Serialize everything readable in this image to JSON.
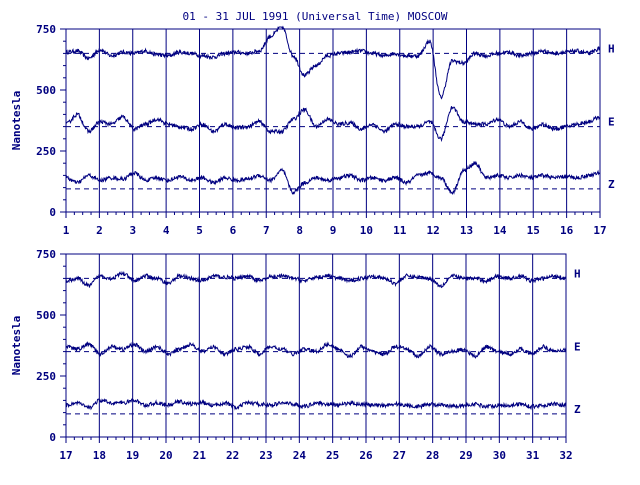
{
  "chart_data": [
    {
      "type": "line",
      "title": "01 - 31 JUL 1991 (Universal Time) MOSCOW",
      "ylabel": "Nanotesla",
      "ylim": [
        0,
        750
      ],
      "y_ticks": [
        "0",
        "250",
        "500",
        "750"
      ],
      "xlim": [
        1,
        17
      ],
      "x_ticks": [
        "1",
        "2",
        "3",
        "4",
        "5",
        "6",
        "7",
        "8",
        "9",
        "10",
        "11",
        "12",
        "13",
        "14",
        "15",
        "16",
        "17"
      ],
      "grid": true,
      "series": [
        {
          "name": "H",
          "baseline": 650,
          "values": [
            655,
            660,
            630,
            665,
            640,
            655,
            650,
            660,
            645,
            640,
            655,
            650,
            640,
            635,
            650,
            655,
            650,
            660,
            720,
            760,
            640,
            560,
            600,
            640,
            650,
            655,
            660,
            650,
            640,
            650,
            640,
            640,
            700,
            470,
            620,
            610,
            650,
            640,
            650,
            655,
            640,
            650,
            660,
            650,
            655,
            660,
            650,
            670
          ]
        },
        {
          "name": "E",
          "baseline": 350,
          "values": [
            360,
            400,
            330,
            370,
            360,
            390,
            340,
            360,
            380,
            360,
            350,
            340,
            360,
            330,
            360,
            345,
            350,
            370,
            330,
            330,
            380,
            420,
            350,
            380,
            360,
            365,
            340,
            360,
            330,
            360,
            350,
            350,
            370,
            300,
            430,
            370,
            360,
            360,
            380,
            350,
            370,
            340,
            360,
            340,
            350,
            360,
            370,
            390
          ]
        },
        {
          "name": "Z",
          "baseline": 95,
          "values": [
            140,
            120,
            150,
            130,
            140,
            135,
            160,
            130,
            140,
            130,
            145,
            130,
            140,
            120,
            140,
            130,
            135,
            150,
            130,
            170,
            80,
            120,
            140,
            130,
            140,
            150,
            130,
            140,
            130,
            140,
            120,
            150,
            160,
            140,
            80,
            170,
            200,
            140,
            150,
            140,
            150,
            140,
            150,
            140,
            145,
            140,
            150,
            160
          ]
        }
      ]
    },
    {
      "type": "line",
      "ylabel": "Nanotesla",
      "ylim": [
        0,
        750
      ],
      "y_ticks": [
        "0",
        "250",
        "500",
        "750"
      ],
      "xlim": [
        17,
        32
      ],
      "x_ticks": [
        "17",
        "18",
        "19",
        "20",
        "21",
        "22",
        "23",
        "24",
        "25",
        "26",
        "27",
        "28",
        "29",
        "30",
        "31",
        "32"
      ],
      "grid": true,
      "series": [
        {
          "name": "H",
          "baseline": 650,
          "values": [
            640,
            650,
            620,
            660,
            650,
            670,
            640,
            660,
            650,
            630,
            660,
            650,
            640,
            660,
            655,
            650,
            660,
            640,
            655,
            660,
            650,
            640,
            655,
            660,
            650,
            640,
            650,
            660,
            650,
            630,
            660,
            655,
            650,
            620,
            660,
            650,
            650,
            640,
            660,
            650,
            660,
            640,
            650,
            660,
            650
          ]
        },
        {
          "name": "E",
          "baseline": 350,
          "values": [
            370,
            360,
            380,
            340,
            370,
            360,
            380,
            350,
            370,
            340,
            360,
            380,
            350,
            370,
            340,
            360,
            370,
            340,
            370,
            360,
            340,
            360,
            350,
            380,
            360,
            330,
            370,
            350,
            340,
            370,
            360,
            330,
            370,
            340,
            350,
            360,
            330,
            370,
            350,
            340,
            360,
            340,
            370,
            350,
            360
          ]
        },
        {
          "name": "Z",
          "baseline": 95,
          "values": [
            130,
            140,
            120,
            150,
            140,
            140,
            150,
            130,
            140,
            130,
            145,
            135,
            140,
            130,
            140,
            120,
            140,
            135,
            130,
            140,
            135,
            125,
            140,
            135,
            130,
            140,
            135,
            130,
            130,
            135,
            130,
            125,
            135,
            130,
            125,
            130,
            135,
            125,
            130,
            130,
            135,
            125,
            130,
            135,
            130
          ]
        }
      ]
    }
  ]
}
